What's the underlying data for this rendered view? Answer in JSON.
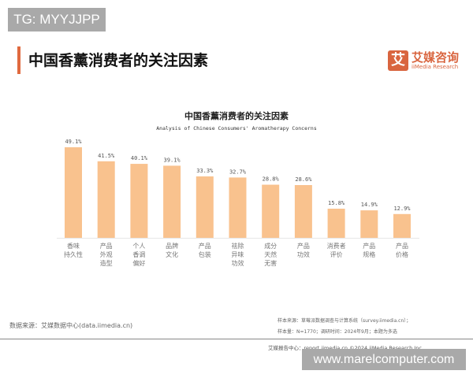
{
  "watermark_top": "TG: MYYJJPP",
  "watermark_bottom": "www.marelcomputer.com",
  "page_title": "中国香薰消费者的关注因素",
  "logo": {
    "cn": "艾媒咨询",
    "en": "iiMedia Research",
    "mark": "艾"
  },
  "colors": {
    "bar": "#f9c28e",
    "accent": "#e06a3f"
  },
  "chart_data": {
    "type": "bar",
    "title": "中国香薰消费者的关注因素",
    "subtitle": "Analysis of Chinese Consumers' Aromatherapy Concerns",
    "categories": [
      "香味\n持久性",
      "产品\n外观\n造型",
      "个人\n香调\n偏好",
      "品牌\n文化",
      "产品\n包装",
      "祛除\n异味\n功效",
      "成分\n天然\n无害",
      "产品\n功效",
      "消费者\n评价",
      "产品\n规格",
      "产品\n价格"
    ],
    "values": [
      49.1,
      41.5,
      40.1,
      39.1,
      33.3,
      32.7,
      28.8,
      28.6,
      15.8,
      14.9,
      12.9
    ],
    "labels": [
      "49.1%",
      "41.5%",
      "40.1%",
      "39.1%",
      "33.3%",
      "32.7%",
      "28.8%",
      "28.6%",
      "15.8%",
      "14.9%",
      "12.9%"
    ],
    "unit": "%",
    "ylim": [
      0,
      50
    ],
    "grid": false
  },
  "footer": {
    "source": "数据来源：艾媒数据中心(data.iimedia.cn)",
    "sample_source": "样本来源：草莓派数据调查与计算系统（survey.iimedia.cn）；",
    "sample_size": "样本量：N=1770；调研时间：2024年9月；本题为多选",
    "report": "艾媒报告中心：report.iimedia.cn   ©2024   iiMedia Research Inc"
  }
}
